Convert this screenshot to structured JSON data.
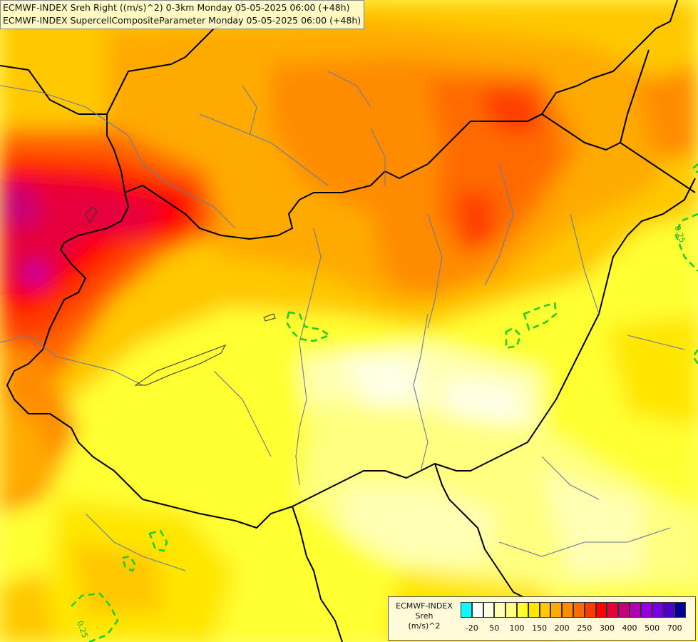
{
  "title": {
    "line1": "ECMWF-INDEX Sreh Right ((m/s)^2) 0-3km Monday 05-05-2025 06:00 (+48h)",
    "line2": "ECMWF-INDEX SupercellCompositeParameter Monday 05-05-2025 06:00 (+48h)"
  },
  "legend": {
    "line1": "ECMWF-INDEX",
    "line2": "Sreh",
    "line3": "(m/s)^2",
    "colors": [
      "#00ffff",
      "#ffffff",
      "#ffffe6",
      "#ffffb3",
      "#ffff80",
      "#ffff33",
      "#ffe600",
      "#ffc800",
      "#ffaa00",
      "#ff8c00",
      "#ff6a00",
      "#ff3c00",
      "#ff0000",
      "#e6003c",
      "#c80078",
      "#b400b4",
      "#9600dc",
      "#7800e6",
      "#5000c8",
      "#000096"
    ],
    "ticks": [
      "-20",
      "50",
      "100",
      "150",
      "200",
      "250",
      "300",
      "400",
      "500",
      "700"
    ]
  },
  "contour_labels": {
    "east": "0.25",
    "southwest": "0.25"
  },
  "colors": {
    "contour_scp": "#22cc22",
    "borders": "#000000",
    "rivers": "#6a7a9a"
  }
}
